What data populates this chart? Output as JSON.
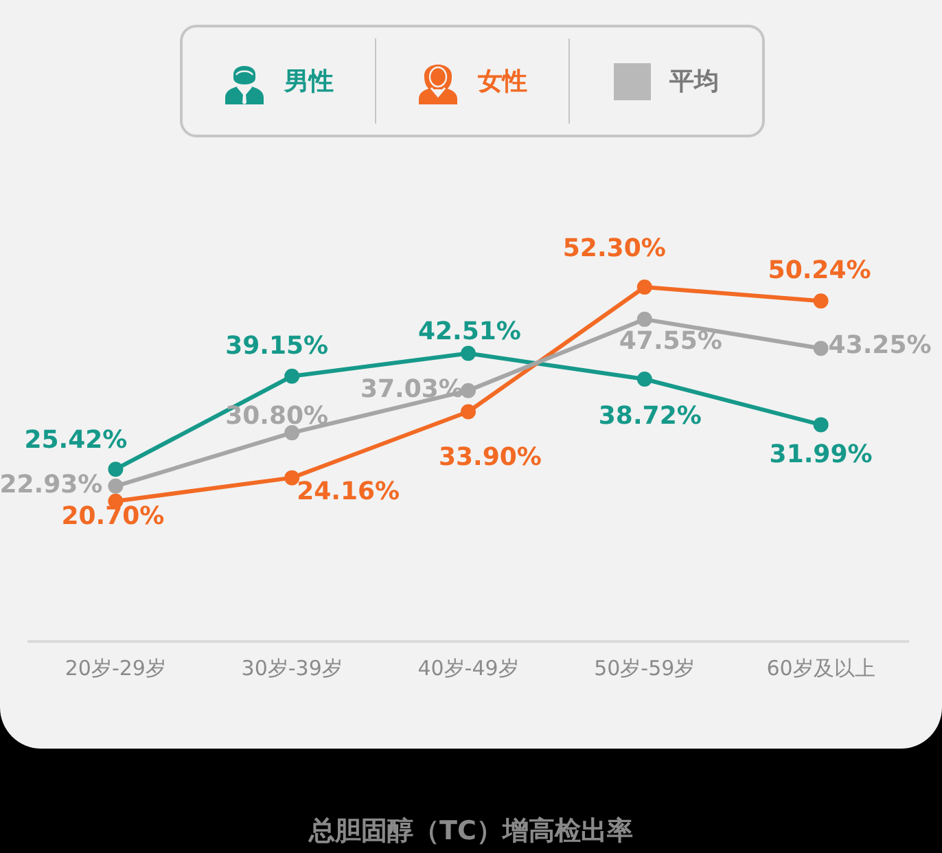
{
  "chart_data": {
    "type": "line",
    "title": "总胆固醇（TC）增高检出率",
    "categories": [
      "20岁-29岁",
      "30岁-39岁",
      "40岁-49岁",
      "50岁-59岁",
      "60岁及以上"
    ],
    "series": [
      {
        "name": "男性",
        "color": "#16998a",
        "values": [
          25.42,
          39.15,
          42.51,
          38.72,
          31.99
        ],
        "value_labels": [
          "25.42%",
          "39.15%",
          "42.51%",
          "38.72%",
          "31.99%"
        ]
      },
      {
        "name": "女性",
        "color": "#f26a24",
        "values": [
          20.7,
          24.16,
          33.9,
          52.3,
          50.24
        ],
        "value_labels": [
          "20.70%",
          "24.16%",
          "33.90%",
          "52.30%",
          "50.24%"
        ]
      },
      {
        "name": "平均",
        "color": "#a6a6a6",
        "values": [
          22.93,
          30.8,
          37.03,
          47.55,
          43.25
        ],
        "value_labels": [
          "22.93%",
          "30.80%",
          "37.03%",
          "47.55%",
          "43.25%"
        ]
      }
    ],
    "legend": "top",
    "marker": "circle",
    "line_style": "solid"
  }
}
